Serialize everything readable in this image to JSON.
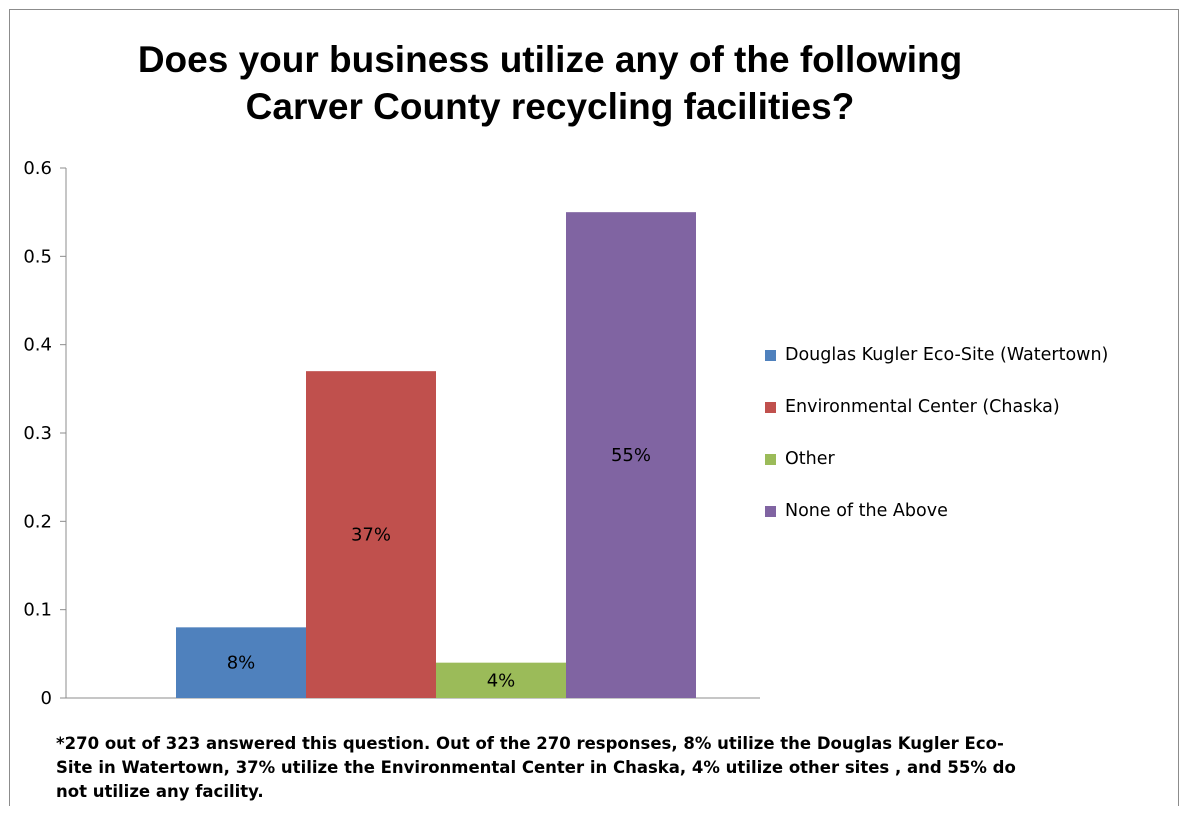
{
  "chart_data": {
    "type": "bar",
    "title": "Does your business utilize any of the following Carver County recycling facilities?",
    "xlabel": "",
    "ylabel": "",
    "ylim": [
      0,
      0.6
    ],
    "yticks": [
      "0",
      "0.1",
      "0.2",
      "0.3",
      "0.4",
      "0.5",
      "0.6"
    ],
    "categories": [
      ""
    ],
    "series": [
      {
        "name": "Douglas Kugler Eco-Site (Watertown)",
        "values": [
          0.08
        ],
        "data_label": "8%",
        "color": "#4f81bd"
      },
      {
        "name": "Environmental Center (Chaska)",
        "values": [
          0.37
        ],
        "data_label": "37%",
        "color": "#c0504d"
      },
      {
        "name": "Other",
        "values": [
          0.04
        ],
        "data_label": "4%",
        "color": "#9bbb59"
      },
      {
        "name": "None of the Above",
        "values": [
          0.55
        ],
        "data_label": "55%",
        "color": "#8064a2"
      }
    ],
    "grid": false,
    "legend_position": "right"
  },
  "footnote": "*270 out of 323 answered this question.  Out of the 270 responses, 8% utilize the Douglas Kugler Eco-Site in Watertown, 37% utilize the Environmental Center in Chaska, 4% utilize other sites , and 55% do not utilize any facility."
}
